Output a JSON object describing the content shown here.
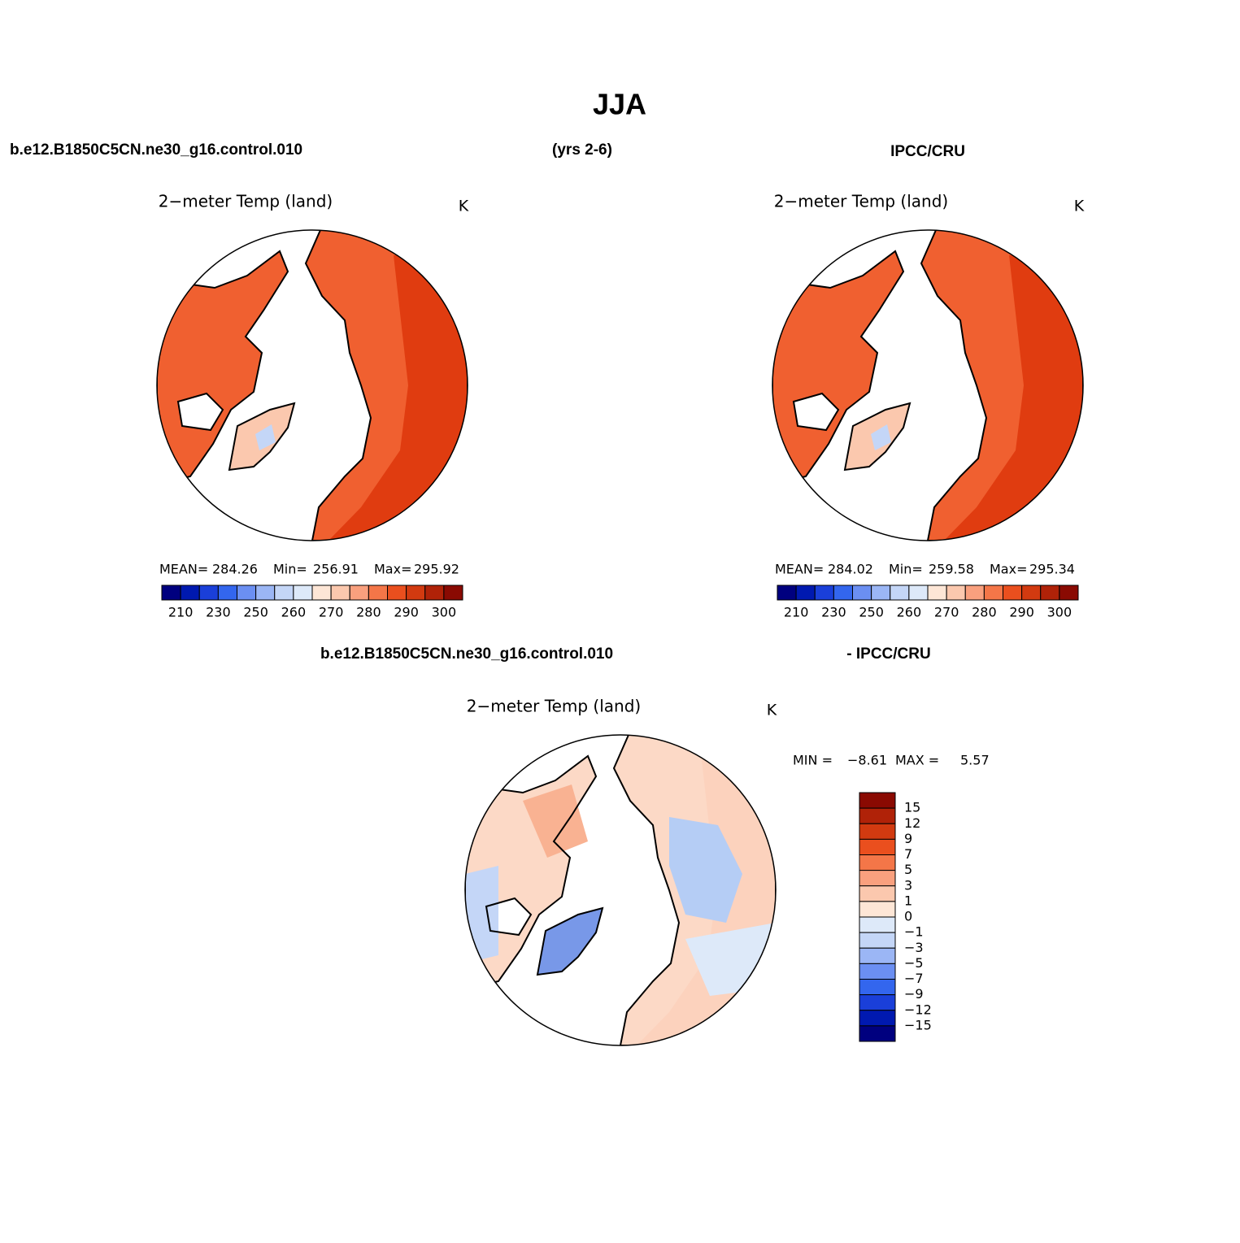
{
  "title": "JJA",
  "header": {
    "left": "b.e12.B1850C5CN.ne30_g16.control.010",
    "center": "(yrs 2-6)",
    "right": "IPCC/CRU"
  },
  "panels": [
    {
      "title": "2−meter Temp (land)",
      "units": "K",
      "mean_label": "MEAN=",
      "mean": "284.26",
      "min_label": "Min=",
      "min": "256.91",
      "max_label": "Max=",
      "max": "295.92",
      "colorbar": {
        "labels": [
          "210",
          "230",
          "250",
          "260",
          "270",
          "280",
          "290",
          "300"
        ],
        "colors": [
          "#00007f",
          "#0019b0",
          "#1a3fd9",
          "#3366ee",
          "#6b8ff2",
          "#9bb6f5",
          "#c4d6f7",
          "#dde9f9",
          "#fde6d6",
          "#fbc8ae",
          "#f9a07e",
          "#f47648",
          "#ea4f1e",
          "#d23a10",
          "#b02208",
          "#8a0a02"
        ]
      }
    },
    {
      "title": "2−meter Temp (land)",
      "units": "K",
      "mean_label": "MEAN=",
      "mean": "284.02",
      "min_label": "Min=",
      "min": "259.58",
      "max_label": "Max=",
      "max": "295.34",
      "colorbar": {
        "labels": [
          "210",
          "230",
          "250",
          "260",
          "270",
          "280",
          "290",
          "300"
        ],
        "colors": [
          "#00007f",
          "#0019b0",
          "#1a3fd9",
          "#3366ee",
          "#6b8ff2",
          "#9bb6f5",
          "#c4d6f7",
          "#dde9f9",
          "#fde6d6",
          "#fbc8ae",
          "#f9a07e",
          "#f47648",
          "#ea4f1e",
          "#d23a10",
          "#b02208",
          "#8a0a02"
        ]
      }
    }
  ],
  "diff": {
    "header_left": "b.e12.B1850C5CN.ne30_g16.control.010",
    "header_right": "- IPCC/CRU",
    "title": "2−meter Temp (land)",
    "units": "K",
    "min_label": "MIN =",
    "min": "−8.61",
    "max_label": "MAX =",
    "max": "5.57",
    "colorbar": {
      "labels": [
        "15",
        "12",
        "9",
        "7",
        "5",
        "3",
        "1",
        "0",
        "−1",
        "−3",
        "−5",
        "−7",
        "−9",
        "−12",
        "−15"
      ],
      "colors": [
        "#8a0a02",
        "#b02208",
        "#d23a10",
        "#ea4f1e",
        "#f47648",
        "#f9a07e",
        "#fbc8ae",
        "#fde6d6",
        "#dde9f9",
        "#c4d6f7",
        "#9bb6f5",
        "#6b8ff2",
        "#3366ee",
        "#1a3fd9",
        "#0019b0",
        "#00007f"
      ]
    }
  }
}
